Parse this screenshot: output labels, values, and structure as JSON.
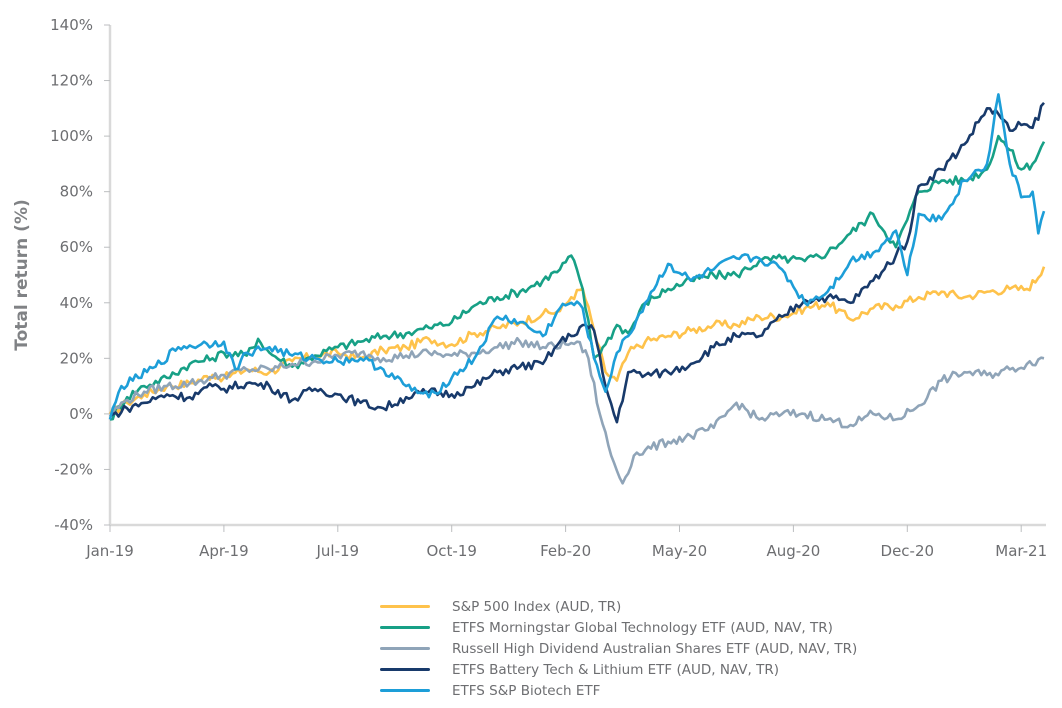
{
  "chart_data": {
    "type": "line",
    "title": "",
    "xlabel": "",
    "ylabel": "Total return (%)",
    "ylim": [
      -40,
      140
    ],
    "yticks": [
      -40,
      -20,
      0,
      20,
      40,
      60,
      80,
      100,
      120,
      140
    ],
    "ytick_labels": [
      "-40%",
      "-20%",
      "0%",
      "20%",
      "40%",
      "60%",
      "80%",
      "100%",
      "120%",
      "140%"
    ],
    "xticks": [
      "Jan-19",
      "Apr-19",
      "Jul-19",
      "Oct-19",
      "Feb-20",
      "May-20",
      "Aug-20",
      "Dec-20",
      "Mar-21"
    ],
    "xlim": [
      0,
      8.22
    ],
    "grid": false,
    "legend_position": "bottom",
    "series": [
      {
        "name": "S&P 500 Index (AUD, TR)",
        "color": "#fec24b",
        "x": [
          0,
          0.15,
          0.3,
          0.5,
          0.7,
          0.9,
          1.0,
          1.2,
          1.4,
          1.6,
          1.8,
          2.0,
          2.2,
          2.4,
          2.6,
          2.8,
          3.0,
          3.2,
          3.4,
          3.6,
          3.8,
          3.95,
          4.05,
          4.15,
          4.25,
          4.35,
          4.45,
          4.55,
          4.7,
          4.9,
          5.1,
          5.3,
          5.5,
          5.7,
          5.9,
          6.1,
          6.3,
          6.5,
          6.7,
          6.9,
          7.1,
          7.3,
          7.5,
          7.7,
          7.9,
          8.05,
          8.15,
          8.2
        ],
        "values": [
          0,
          4,
          7,
          10,
          11,
          14,
          13,
          16,
          15,
          19,
          21,
          22,
          20,
          23,
          24,
          27,
          25,
          29,
          31,
          33,
          36,
          37,
          42,
          45,
          30,
          15,
          12,
          22,
          26,
          28,
          30,
          32,
          32,
          35,
          35,
          38,
          40,
          34,
          38,
          39,
          42,
          44,
          42,
          44,
          45,
          45,
          49,
          53
        ]
      },
      {
        "name": "ETFS Morningstar Global Technology ETF (AUD, NAV, TR)",
        "color": "#17a086",
        "x": [
          0,
          0.15,
          0.3,
          0.5,
          0.7,
          0.9,
          1.0,
          1.2,
          1.3,
          1.4,
          1.6,
          1.8,
          2.0,
          2.2,
          2.4,
          2.6,
          2.8,
          3.0,
          3.2,
          3.4,
          3.6,
          3.8,
          3.95,
          4.05,
          4.15,
          4.25,
          4.35,
          4.45,
          4.55,
          4.7,
          4.9,
          5.1,
          5.3,
          5.5,
          5.7,
          5.9,
          6.1,
          6.3,
          6.5,
          6.7,
          6.9,
          7.1,
          7.3,
          7.5,
          7.7,
          7.8,
          7.9,
          8.0,
          8.1,
          8.2
        ],
        "values": [
          -2,
          6,
          10,
          13,
          18,
          20,
          22,
          21,
          27,
          22,
          17,
          21,
          24,
          26,
          28,
          29,
          31,
          33,
          39,
          42,
          44,
          48,
          52,
          57,
          45,
          20,
          25,
          32,
          29,
          40,
          45,
          48,
          50,
          50,
          55,
          56,
          55,
          58,
          65,
          72,
          60,
          80,
          84,
          84,
          88,
          100,
          95,
          88,
          90,
          98
        ]
      },
      {
        "name": "Russell High Dividend Australian Shares ETF (AUD, NAV, TR)",
        "color": "#8fa4b8",
        "x": [
          0,
          0.15,
          0.3,
          0.5,
          0.7,
          0.9,
          1.0,
          1.2,
          1.4,
          1.6,
          1.8,
          2.0,
          2.2,
          2.4,
          2.6,
          2.8,
          3.0,
          3.2,
          3.4,
          3.6,
          3.8,
          4.0,
          4.1,
          4.2,
          4.3,
          4.4,
          4.5,
          4.6,
          4.7,
          4.9,
          5.1,
          5.3,
          5.5,
          5.7,
          5.9,
          6.1,
          6.3,
          6.5,
          6.7,
          6.9,
          7.1,
          7.3,
          7.5,
          7.7,
          7.9,
          8.05,
          8.2
        ],
        "values": [
          0,
          5,
          8,
          10,
          11,
          13,
          14,
          16,
          16,
          18,
          19,
          21,
          22,
          20,
          21,
          22,
          21,
          22,
          24,
          26,
          24,
          25,
          26,
          20,
          0,
          -15,
          -25,
          -15,
          -13,
          -10,
          -8,
          -5,
          4,
          -2,
          0,
          0,
          -2,
          -4,
          0,
          -2,
          3,
          12,
          15,
          14,
          16,
          18,
          20
        ]
      },
      {
        "name": "ETFS Battery Tech & Lithium ETF (AUD, NAV, TR)",
        "color": "#183a6b",
        "x": [
          0,
          0.15,
          0.3,
          0.5,
          0.7,
          0.9,
          1.0,
          1.2,
          1.4,
          1.6,
          1.8,
          2.0,
          2.2,
          2.4,
          2.6,
          2.8,
          3.0,
          3.2,
          3.4,
          3.6,
          3.8,
          3.95,
          4.05,
          4.15,
          4.25,
          4.35,
          4.45,
          4.55,
          4.7,
          4.9,
          5.1,
          5.3,
          5.5,
          5.7,
          5.9,
          6.1,
          6.3,
          6.5,
          6.7,
          6.9,
          7.0,
          7.1,
          7.3,
          7.5,
          7.7,
          7.8,
          7.9,
          8.0,
          8.1,
          8.2
        ],
        "values": [
          -1,
          2,
          4,
          7,
          6,
          10,
          9,
          11,
          10,
          5,
          9,
          7,
          4,
          2,
          6,
          8,
          7,
          10,
          15,
          17,
          18,
          26,
          28,
          32,
          30,
          10,
          -3,
          15,
          14,
          15,
          18,
          24,
          28,
          28,
          35,
          41,
          42,
          40,
          48,
          57,
          62,
          82,
          88,
          97,
          110,
          108,
          102,
          104,
          103,
          112
        ]
      },
      {
        "name": "ETFS S&P Biotech ETF",
        "color": "#1d9ed8",
        "x": [
          0,
          0.1,
          0.2,
          0.4,
          0.6,
          0.8,
          1.0,
          1.1,
          1.2,
          1.4,
          1.6,
          1.8,
          2.0,
          2.2,
          2.4,
          2.6,
          2.8,
          3.0,
          3.2,
          3.4,
          3.6,
          3.8,
          3.95,
          4.05,
          4.15,
          4.25,
          4.35,
          4.45,
          4.55,
          4.7,
          4.9,
          5.1,
          5.3,
          5.5,
          5.7,
          5.9,
          6.1,
          6.3,
          6.5,
          6.7,
          6.9,
          7.0,
          7.1,
          7.3,
          7.5,
          7.7,
          7.8,
          7.9,
          8.0,
          8.1,
          8.15,
          8.2
        ],
        "values": [
          -2,
          10,
          12,
          17,
          24,
          25,
          26,
          16,
          22,
          24,
          21,
          20,
          19,
          20,
          16,
          10,
          6,
          13,
          20,
          35,
          33,
          28,
          38,
          40,
          38,
          20,
          8,
          22,
          28,
          40,
          54,
          48,
          52,
          56,
          56,
          52,
          40,
          44,
          55,
          58,
          66,
          50,
          72,
          70,
          84,
          90,
          115,
          90,
          78,
          80,
          65,
          73
        ]
      }
    ]
  }
}
